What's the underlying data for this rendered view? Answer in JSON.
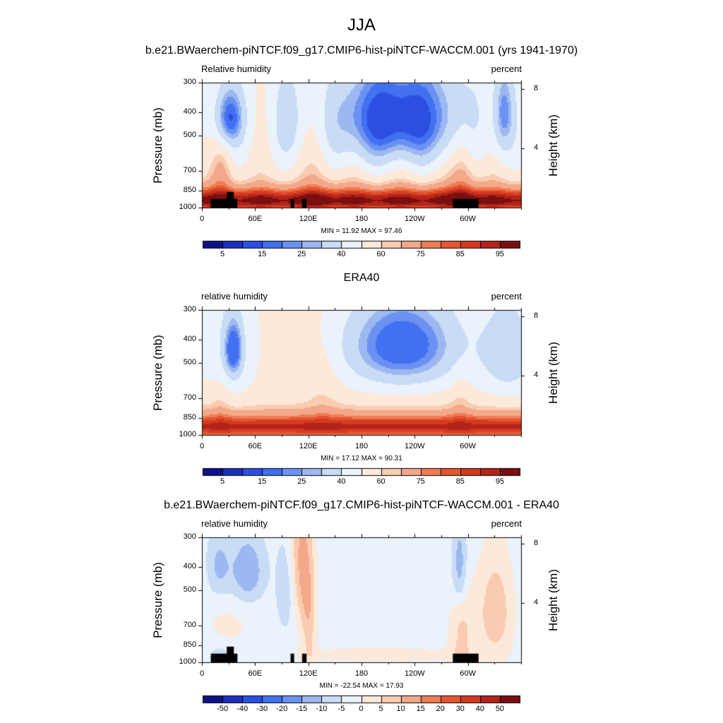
{
  "main_title": "JJA",
  "panels": [
    {
      "title": "b.e21.BWaerchem-piNTCF.f09_g17.CMIP6-hist-piNTCF-WACCM.001 (yrs 1941-1970)",
      "left_string": "Relative humidity",
      "right_string": "percent",
      "minmax": "MIN =  11.92  MAX =  97.46"
    },
    {
      "title": "ERA40",
      "left_string": "relative humidity",
      "right_string": "percent",
      "minmax": "MIN =  17.12  MAX =  90.31"
    },
    {
      "title": "b.e21.BWaerchem-piNTCF.f09_g17.CMIP6-hist-piNTCF-WACCM.001 - ERA40",
      "left_string": "relative humidity",
      "right_string": "percent",
      "minmax": "MIN = -22.54  MAX =  17.93"
    }
  ],
  "chart_data": [
    {
      "type": "heatmap",
      "ylabel": "Pressure (mb)",
      "y2label": "Height (km)",
      "x_ticks": [
        "0",
        "60E",
        "120E",
        "180",
        "120W",
        "60W"
      ],
      "x_tick_values": [
        0,
        60,
        120,
        180,
        240,
        300
      ],
      "xlim": [
        0,
        360
      ],
      "y_ticks": [
        "300",
        "400",
        "500",
        "700",
        "850",
        "1000"
      ],
      "y_tick_values": [
        300,
        400,
        500,
        700,
        850,
        1000
      ],
      "ylim": [
        1000,
        300
      ],
      "y2_ticks": [
        "8",
        "4"
      ],
      "y2_tick_values": [
        8,
        4
      ],
      "colorbar_labels": [
        "5",
        "15",
        "25",
        "40",
        "60",
        "75",
        "85",
        "95"
      ],
      "colorbar_colors": [
        "#0f0f88",
        "#1e2fbf",
        "#2b4fe0",
        "#4170f0",
        "#6b92f2",
        "#9db8f0",
        "#c8dcf5",
        "#eaf2fb",
        "#fde9d9",
        "#f9ccb2",
        "#f4a88a",
        "#ee7d55",
        "#e55530",
        "#d33a20",
        "#b3231a",
        "#7a0f0f"
      ],
      "colorbar_range": [
        0,
        100
      ],
      "min": 11.92,
      "max": 97.46,
      "topography": true
    },
    {
      "type": "heatmap",
      "ylabel": "Pressure (mb)",
      "y2label": "Height (km)",
      "x_ticks": [
        "0",
        "60E",
        "120E",
        "180",
        "120W",
        "60W"
      ],
      "x_tick_values": [
        0,
        60,
        120,
        180,
        240,
        300
      ],
      "xlim": [
        0,
        360
      ],
      "y_ticks": [
        "300",
        "400",
        "500",
        "700",
        "850",
        "1000"
      ],
      "y_tick_values": [
        300,
        400,
        500,
        700,
        850,
        1000
      ],
      "ylim": [
        1000,
        300
      ],
      "y2_ticks": [
        "8",
        "4"
      ],
      "y2_tick_values": [
        8,
        4
      ],
      "colorbar_labels": [
        "5",
        "15",
        "25",
        "40",
        "60",
        "75",
        "85",
        "95"
      ],
      "colorbar_colors": [
        "#0f0f88",
        "#1e2fbf",
        "#2b4fe0",
        "#4170f0",
        "#6b92f2",
        "#9db8f0",
        "#c8dcf5",
        "#eaf2fb",
        "#fde9d9",
        "#f9ccb2",
        "#f4a88a",
        "#ee7d55",
        "#e55530",
        "#d33a20",
        "#b3231a",
        "#7a0f0f"
      ],
      "colorbar_range": [
        0,
        100
      ],
      "min": 17.12,
      "max": 90.31,
      "topography": false
    },
    {
      "type": "heatmap",
      "ylabel": "Pressure (mb)",
      "y2label": "Height (km)",
      "x_ticks": [
        "0",
        "60E",
        "120E",
        "180",
        "120W",
        "60W"
      ],
      "x_tick_values": [
        0,
        60,
        120,
        180,
        240,
        300
      ],
      "xlim": [
        0,
        360
      ],
      "y_ticks": [
        "300",
        "400",
        "500",
        "700",
        "850",
        "1000"
      ],
      "y_tick_values": [
        300,
        400,
        500,
        700,
        850,
        1000
      ],
      "ylim": [
        1000,
        300
      ],
      "y2_ticks": [
        "8",
        "4"
      ],
      "y2_tick_values": [
        8,
        4
      ],
      "colorbar_labels": [
        "-50",
        "-40",
        "-30",
        "-20",
        "-15",
        "-10",
        "-5",
        "0",
        "5",
        "10",
        "15",
        "20",
        "30",
        "40",
        "50"
      ],
      "colorbar_colors": [
        "#0f0f88",
        "#1e2fbf",
        "#2b4fe0",
        "#4170f0",
        "#6b92f2",
        "#9db8f0",
        "#c8dcf5",
        "#eaf2fb",
        "#fde9d9",
        "#f9ccb2",
        "#f4a88a",
        "#ee7d55",
        "#e55530",
        "#d33a20",
        "#b3231a",
        "#7a0f0f"
      ],
      "colorbar_range": [
        -60,
        60
      ],
      "min": -22.54,
      "max": 17.93,
      "topography": true
    }
  ]
}
